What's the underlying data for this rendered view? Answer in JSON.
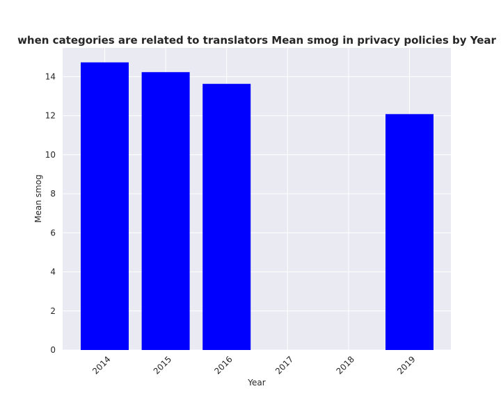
{
  "chart_data": {
    "type": "bar",
    "title": "when categories are related to translators Mean smog in privacy policies by Year",
    "xlabel": "Year",
    "ylabel": "Mean smog",
    "categories": [
      "2014",
      "2015",
      "2016",
      "2017",
      "2018",
      "2019"
    ],
    "values": [
      14.73,
      14.23,
      13.63,
      null,
      null,
      12.08
    ],
    "ylim": [
      0,
      15.47
    ],
    "yticks": [
      0,
      2,
      4,
      6,
      8,
      10,
      12,
      14
    ],
    "grid": true,
    "bar_color": "#0000ff",
    "plot_background": "#eaeaf2",
    "grid_color": "#ffffff"
  }
}
